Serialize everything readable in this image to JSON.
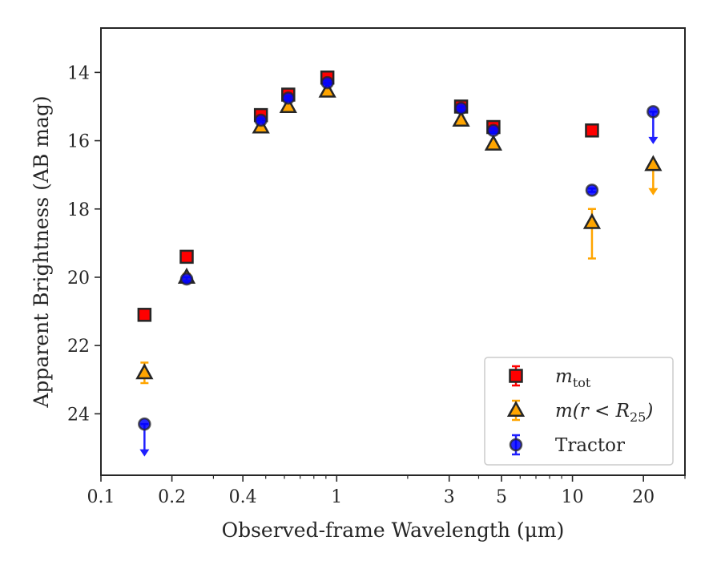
{
  "chart_data": {
    "type": "scatter",
    "xlabel": "Observed-frame Wavelength (μm)",
    "ylabel": "Apparent Brightness (AB mag)",
    "x_scale": "log",
    "y_inverted": true,
    "xlim": [
      0.1,
      30
    ],
    "ylim": [
      12.7,
      25.8
    ],
    "x_ticks": [
      {
        "value": 0.1,
        "label": "0.1"
      },
      {
        "value": 0.2,
        "label": "0.2"
      },
      {
        "value": 0.4,
        "label": "0.4"
      },
      {
        "value": 1,
        "label": "1"
      },
      {
        "value": 3,
        "label": "3"
      },
      {
        "value": 5,
        "label": "5"
      },
      {
        "value": 10,
        "label": "10"
      },
      {
        "value": 20,
        "label": "20"
      }
    ],
    "x_minor_ticks": [
      0.3,
      0.5,
      0.6,
      0.7,
      0.8,
      0.9,
      2,
      4,
      6,
      7,
      8,
      9,
      30
    ],
    "y_ticks": [
      14,
      16,
      18,
      20,
      22,
      24
    ],
    "grid": false,
    "legend_position": "lower-right",
    "legend": [
      {
        "series": "mtot",
        "label_main": "m",
        "label_sub": "tot"
      },
      {
        "series": "mr25",
        "label_main": "m(r < R",
        "label_sub": "25",
        "label_close": ")"
      },
      {
        "series": "tractor",
        "label_main": "Tractor"
      }
    ],
    "series": [
      {
        "id": "mtot",
        "marker": "square",
        "color": "#ff0000",
        "errcolor": "#ff0000",
        "points": [
          {
            "x": 0.153,
            "y": 21.1,
            "err": 0.1
          },
          {
            "x": 0.231,
            "y": 19.4,
            "err": 0.08
          },
          {
            "x": 0.477,
            "y": 15.25,
            "err": 0.08
          },
          {
            "x": 0.623,
            "y": 14.65,
            "err": 0.08
          },
          {
            "x": 0.913,
            "y": 14.15,
            "err": 0.1
          },
          {
            "x": 3.37,
            "y": 15.0,
            "err": 0.05
          },
          {
            "x": 4.62,
            "y": 15.6,
            "err": 0.05
          },
          {
            "x": 12.1,
            "y": 15.7,
            "err": 0.05
          }
        ]
      },
      {
        "id": "mr25",
        "marker": "triangle",
        "color": "#ffa500",
        "errcolor": "#ffa500",
        "points": [
          {
            "x": 0.153,
            "y": 22.8,
            "err": 0.3
          },
          {
            "x": 0.231,
            "y": 20.0,
            "err": 0.1
          },
          {
            "x": 0.477,
            "y": 15.6,
            "err": 0.05
          },
          {
            "x": 0.623,
            "y": 15.0,
            "err": 0.05
          },
          {
            "x": 0.913,
            "y": 14.55,
            "err": 0.05
          },
          {
            "x": 3.37,
            "y": 15.4,
            "err": 0.05
          },
          {
            "x": 4.62,
            "y": 16.1,
            "err": 0.05
          },
          {
            "x": 12.1,
            "y": 18.4,
            "err_up": 0.4,
            "err_down": 1.05
          },
          {
            "x": 22.0,
            "y": 16.7,
            "upper_limit": true,
            "limit_to": 17.6
          }
        ]
      },
      {
        "id": "tractor",
        "marker": "circle",
        "color": "#0000ff",
        "errcolor": "#1f1fff",
        "points": [
          {
            "x": 0.153,
            "y": 24.3,
            "upper_limit": true,
            "limit_to": 25.25
          },
          {
            "x": 0.231,
            "y": 20.05,
            "err": 0.05
          },
          {
            "x": 0.477,
            "y": 15.4,
            "err": 0.05
          },
          {
            "x": 0.623,
            "y": 14.75,
            "err": 0.05
          },
          {
            "x": 0.913,
            "y": 14.3,
            "err": 0.05
          },
          {
            "x": 3.37,
            "y": 15.05,
            "err": 0.05
          },
          {
            "x": 4.62,
            "y": 15.7,
            "err": 0.05
          },
          {
            "x": 12.1,
            "y": 17.45,
            "err": 0.05
          },
          {
            "x": 22.0,
            "y": 15.15,
            "upper_limit": true,
            "limit_to": 16.1
          }
        ]
      }
    ]
  }
}
